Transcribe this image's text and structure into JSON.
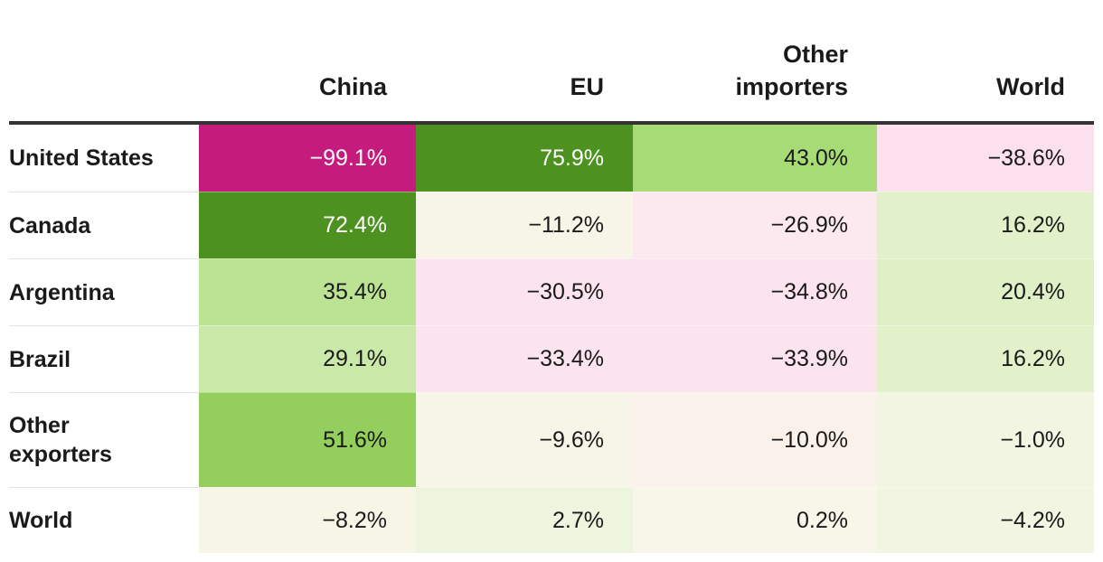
{
  "chart_data": {
    "type": "table",
    "columns": [
      "China",
      "EU",
      "Other importers",
      "World"
    ],
    "column_lines": [
      [
        "China"
      ],
      [
        "EU"
      ],
      [
        "Other",
        "importers"
      ],
      [
        "World"
      ]
    ],
    "rows": [
      {
        "label": "United States",
        "label_lines": [
          "United States"
        ],
        "values": [
          -99.1,
          75.9,
          43.0,
          -38.6
        ],
        "display": [
          "−99.1%",
          "75.9%",
          "43.0%",
          "−38.6%"
        ]
      },
      {
        "label": "Canada",
        "label_lines": [
          "Canada"
        ],
        "values": [
          72.4,
          -11.2,
          -26.9,
          16.2
        ],
        "display": [
          "72.4%",
          "−11.2%",
          "−26.9%",
          "16.2%"
        ]
      },
      {
        "label": "Argentina",
        "label_lines": [
          "Argentina"
        ],
        "values": [
          35.4,
          -30.5,
          -34.8,
          20.4
        ],
        "display": [
          "35.4%",
          "−30.5%",
          "−34.8%",
          "20.4%"
        ]
      },
      {
        "label": "Brazil",
        "label_lines": [
          "Brazil"
        ],
        "values": [
          29.1,
          -33.4,
          -33.9,
          16.2
        ],
        "display": [
          "29.1%",
          "−33.4%",
          "−33.9%",
          "16.2%"
        ]
      },
      {
        "label": "Other exporters",
        "label_lines": [
          "Other",
          "exporters"
        ],
        "values": [
          51.6,
          -9.6,
          -10.0,
          -1.0
        ],
        "display": [
          "51.6%",
          "−9.6%",
          "−10.0%",
          "−1.0%"
        ]
      },
      {
        "label": "World",
        "label_lines": [
          "World"
        ],
        "values": [
          -8.2,
          2.7,
          0.2,
          -4.2
        ],
        "display": [
          "−8.2%",
          "2.7%",
          "0.2%",
          "−4.2%"
        ]
      }
    ],
    "cell_colors": [
      [
        "#c51b7d",
        "#4d9221",
        "#a6db75",
        "#fde0ee"
      ],
      [
        "#4d9221",
        "#f7f4e8",
        "#fce8ef",
        "#e2f1c9"
      ],
      [
        "#bce394",
        "#fce4ee",
        "#fce4ee",
        "#e0f0c6"
      ],
      [
        "#cae9a8",
        "#fce4ee",
        "#fce4ee",
        "#e2f1c9"
      ],
      [
        "#94cf5e",
        "#f7f4e8",
        "#f9f1ea",
        "#f3f5e3"
      ],
      [
        "#f7f5e6",
        "#eef5de",
        "#f7f6e8",
        "#f3f5e3"
      ]
    ],
    "light_text_cells": [
      [
        0,
        0
      ],
      [
        0,
        1
      ],
      [
        1,
        0
      ]
    ]
  }
}
